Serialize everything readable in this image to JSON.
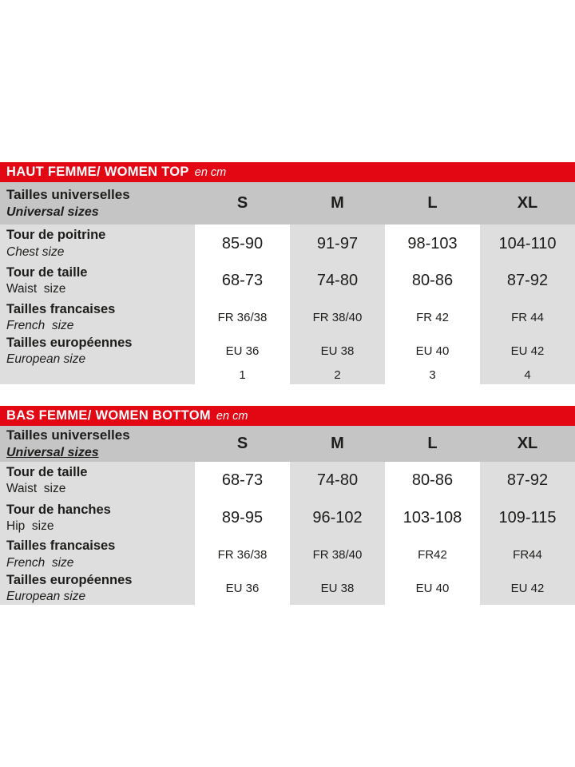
{
  "colors": {
    "brand_red": "#e30613",
    "header_gray": "#c5c5c6",
    "row_gray": "#dedede",
    "text": "#1d1d1b",
    "title_text": "#ffffff"
  },
  "tables": [
    {
      "title": "HAUT FEMME/ WOMEN TOP",
      "unit": "en cm",
      "corner": {
        "fr": "Tailles universelles",
        "en": "Universal sizes",
        "underline": false
      },
      "columns": [
        "S",
        "M",
        "L",
        "XL"
      ],
      "rows": [
        {
          "fr": "Tour de poitrine",
          "en": "Chest size",
          "en_italic": true,
          "value_style": "large",
          "values": [
            "85-90",
            "91-97",
            "98-103",
            "104-110"
          ]
        },
        {
          "fr": "Tour de taille",
          "en": "Waist  size",
          "en_italic": false,
          "value_style": "large",
          "values": [
            "68-73",
            "74-80",
            "80-86",
            "87-92"
          ]
        },
        {
          "fr": "Tailles francaises",
          "en": "French  size",
          "en_italic": true,
          "value_style": "small",
          "values": [
            "FR 36/38",
            "FR 38/40",
            "FR 42",
            "FR 44"
          ]
        },
        {
          "fr": "Tailles européennes",
          "en": "European size",
          "en_italic": true,
          "value_style": "small",
          "values": [
            "EU 36",
            "EU 38",
            "EU 40",
            "EU 42"
          ]
        },
        {
          "fr": "",
          "en": "",
          "en_italic": false,
          "value_style": "small",
          "values": [
            "1",
            "2",
            "3",
            "4"
          ]
        }
      ]
    },
    {
      "title": "BAS FEMME/ WOMEN BOTTOM",
      "unit": "en cm",
      "corner": {
        "fr": "Tailles universelles",
        "en": "Universal sizes",
        "underline": true
      },
      "columns": [
        "S",
        "M",
        "L",
        "XL"
      ],
      "rows": [
        {
          "fr": "Tour de taille",
          "en": "Waist  size",
          "en_italic": false,
          "value_style": "large",
          "values": [
            "68-73",
            "74-80",
            "80-86",
            "87-92"
          ]
        },
        {
          "fr": "Tour de hanches",
          "en": "Hip  size",
          "en_italic": false,
          "value_style": "large",
          "values": [
            "89-95",
            "96-102",
            "103-108",
            "109-115"
          ]
        },
        {
          "fr": "Tailles francaises",
          "en": "French  size",
          "en_italic": true,
          "value_style": "small",
          "values": [
            "FR 36/38",
            "FR 38/40",
            "FR42",
            "FR44"
          ]
        },
        {
          "fr": "Tailles européennes",
          "en": "European size",
          "en_italic": true,
          "value_style": "small",
          "values": [
            "EU 36",
            "EU 38",
            "EU 40",
            "EU 42"
          ]
        }
      ]
    }
  ]
}
